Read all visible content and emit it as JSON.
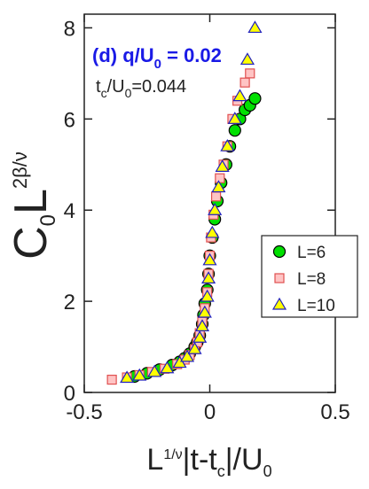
{
  "chart_data": {
    "type": "scatter",
    "xlabel": [
      "L",
      "1/ν",
      "|t-t",
      "c",
      "|/U",
      "0"
    ],
    "ylabel": [
      "C",
      "0",
      "L",
      "2β/ν"
    ],
    "annotations": [
      {
        "parts": [
          "(d) q/U",
          "0",
          " = 0.02"
        ],
        "color": "#1a1ae6"
      },
      {
        "parts": [
          "t",
          "c",
          "/U",
          "0",
          "=0.044"
        ],
        "color": "#222222"
      }
    ],
    "xlim": [
      -0.5,
      0.5
    ],
    "ylim": [
      0,
      8.3
    ],
    "xticks": [
      -0.5,
      0,
      0.5
    ],
    "yticks": [
      0,
      2,
      4,
      6,
      8
    ],
    "legend": "right",
    "series": [
      {
        "name": "L=6",
        "marker": "circle",
        "color": "#00e000",
        "edge": "#000000",
        "x": [
          -0.3,
          -0.25,
          -0.2,
          -0.15,
          -0.12,
          -0.1,
          -0.08,
          -0.06,
          -0.05,
          -0.04,
          -0.03,
          -0.025,
          -0.02,
          -0.01,
          -0.005,
          0,
          0.01,
          0.02,
          0.03,
          0.045,
          0.065,
          0.08,
          0.1,
          0.12,
          0.14,
          0.16,
          0.18
        ],
        "values": [
          0.35,
          0.42,
          0.5,
          0.6,
          0.67,
          0.75,
          0.85,
          1.0,
          1.1,
          1.25,
          1.5,
          1.7,
          1.95,
          2.25,
          2.6,
          3.0,
          3.4,
          3.8,
          4.2,
          4.6,
          5.0,
          5.4,
          5.75,
          6.0,
          6.2,
          6.3,
          6.45
        ]
      },
      {
        "name": "L=8",
        "marker": "square",
        "color": "#ffc4c4",
        "edge": "#e05050",
        "x": [
          -0.39,
          -0.33,
          -0.28,
          -0.23,
          -0.18,
          -0.13,
          -0.1,
          -0.08,
          -0.06,
          -0.05,
          -0.04,
          -0.03,
          -0.02,
          -0.01,
          -0.005,
          0,
          0.005,
          0.015,
          0.025,
          0.04,
          0.055,
          0.07,
          0.09,
          0.11,
          0.14,
          0.16
        ],
        "values": [
          0.28,
          0.33,
          0.38,
          0.45,
          0.52,
          0.62,
          0.72,
          0.82,
          0.95,
          1.1,
          1.3,
          1.55,
          1.85,
          2.2,
          2.6,
          3.0,
          3.4,
          3.9,
          4.3,
          4.7,
          5.0,
          5.4,
          6.0,
          6.4,
          6.8,
          7.0
        ]
      },
      {
        "name": "L=10",
        "marker": "triangle",
        "color": "#ffff00",
        "edge": "#2020c0",
        "x": [
          -0.33,
          -0.28,
          -0.22,
          -0.17,
          -0.12,
          -0.09,
          -0.06,
          -0.04,
          -0.03,
          -0.02,
          -0.01,
          -0.005,
          0,
          0.01,
          0.02,
          0.035,
          0.05,
          0.07,
          0.1,
          0.12,
          0.15,
          0.18
        ],
        "values": [
          0.32,
          0.37,
          0.45,
          0.53,
          0.65,
          0.78,
          0.95,
          1.2,
          1.45,
          1.75,
          2.1,
          2.5,
          2.9,
          3.5,
          4.0,
          4.5,
          4.95,
          5.4,
          6.0,
          6.5,
          7.3,
          8.0
        ]
      }
    ]
  }
}
